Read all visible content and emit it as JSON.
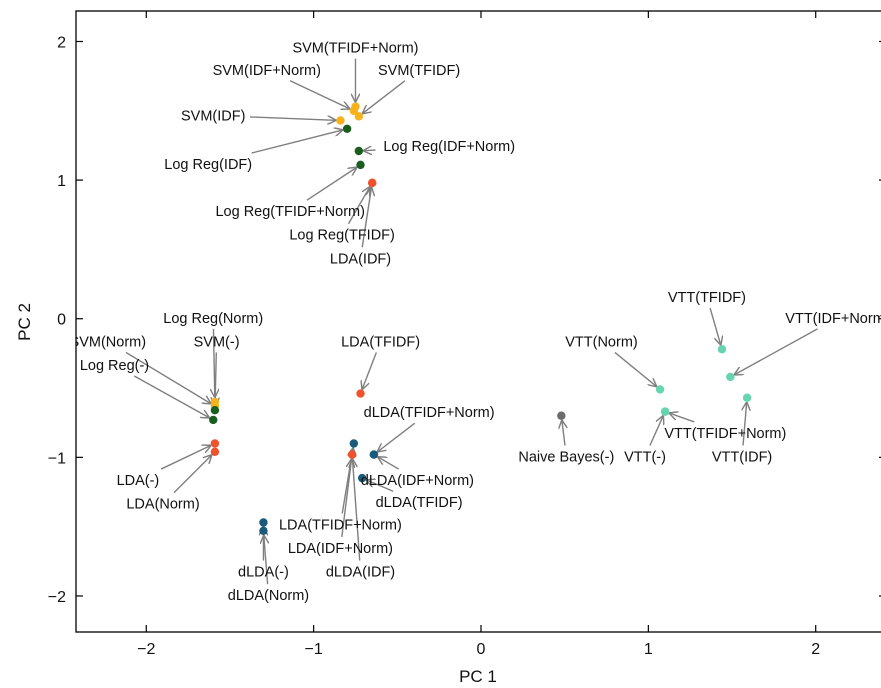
{
  "chart_data": {
    "type": "scatter",
    "title": "",
    "xlabel": "PC 1",
    "ylabel": "PC 2",
    "xlim": [
      -2.42,
      2.42
    ],
    "ylim": [
      -2.26,
      2.22
    ],
    "xticks": [
      -2,
      -1,
      0,
      1,
      2
    ],
    "yticks": [
      -2,
      -1,
      0,
      1,
      2
    ],
    "grid": false,
    "colors": {
      "svm": "#f5b21b",
      "logreg": "#1a5e1f",
      "lda": "#f0522c",
      "dlda": "#1a5a7a",
      "vtt": "#66d4ae",
      "naive_bayes": "#6b6b6b",
      "arrow": "#7f7f7f"
    },
    "points": [
      {
        "label": "SVM(TFIDF+Norm)",
        "x": -0.75,
        "y": 1.53,
        "group": "svm",
        "lx": -0.75,
        "ly": 1.92,
        "la": "middle"
      },
      {
        "label": "SVM(IDF+Norm)",
        "x": -0.76,
        "y": 1.5,
        "group": "svm",
        "lx": -1.28,
        "ly": 1.76,
        "la": "middle"
      },
      {
        "label": "SVM(TFIDF)",
        "x": -0.73,
        "y": 1.46,
        "group": "svm",
        "lx": -0.37,
        "ly": 1.76,
        "la": "middle"
      },
      {
        "label": "SVM(IDF)",
        "x": -0.84,
        "y": 1.43,
        "group": "svm",
        "lx": -1.6,
        "ly": 1.43,
        "la": "middle"
      },
      {
        "label": "Log Reg(IDF)",
        "x": -0.8,
        "y": 1.37,
        "group": "logreg",
        "lx": -1.63,
        "ly": 1.08,
        "la": "middle"
      },
      {
        "label": "Log Reg(IDF+Norm)",
        "x": -0.73,
        "y": 1.21,
        "group": "logreg",
        "lx": -0.19,
        "ly": 1.21,
        "la": "middle"
      },
      {
        "label": "Log Reg(TFIDF+Norm)",
        "x": -0.72,
        "y": 1.11,
        "group": "logreg",
        "lx": -1.14,
        "ly": 0.74,
        "la": "middle"
      },
      {
        "label": "Log Reg(TFIDF)",
        "x": -0.65,
        "y": 0.98,
        "group": "lda",
        "lx": -0.83,
        "ly": 0.57,
        "la": "middle"
      },
      {
        "label": "LDA(IDF)",
        "x": -0.65,
        "y": 0.98,
        "group": "lda",
        "lx": -0.72,
        "ly": 0.4,
        "la": "middle"
      },
      {
        "label": "Log Reg(Norm)",
        "x": -1.59,
        "y": -0.6,
        "group": "svm",
        "lx": -1.6,
        "ly": -0.03,
        "la": "middle"
      },
      {
        "label": "SVM(Norm)",
        "x": -1.59,
        "y": -0.63,
        "group": "svm",
        "lx": -2.23,
        "ly": -0.2,
        "la": "middle"
      },
      {
        "label": "SVM(-)",
        "x": -1.59,
        "y": -0.66,
        "group": "logreg",
        "lx": -1.58,
        "ly": -0.2,
        "la": "middle"
      },
      {
        "label": "Log Reg(-)",
        "x": -1.6,
        "y": -0.73,
        "group": "logreg",
        "lx": -2.19,
        "ly": -0.37,
        "la": "middle"
      },
      {
        "label": "LDA(-)",
        "x": -1.59,
        "y": -0.9,
        "group": "lda",
        "lx": -2.05,
        "ly": -1.2,
        "la": "middle"
      },
      {
        "label": "LDA(Norm)",
        "x": -1.59,
        "y": -0.96,
        "group": "lda",
        "lx": -1.9,
        "ly": -1.37,
        "la": "middle"
      },
      {
        "label": "LDA(TFIDF)",
        "x": -0.72,
        "y": -0.54,
        "group": "lda",
        "lx": -0.6,
        "ly": -0.2,
        "la": "middle"
      },
      {
        "label": "dLDA(TFIDF+Norm)",
        "x": -0.64,
        "y": -0.98,
        "group": "dlda",
        "lx": -0.31,
        "ly": -0.71,
        "la": "middle"
      },
      {
        "label": "dLDA(IDF+Norm)",
        "x": -0.64,
        "y": -0.98,
        "group": "dlda",
        "lx": -0.38,
        "ly": -1.2,
        "la": "middle"
      },
      {
        "label": "dLDA(TFIDF)",
        "x": -0.71,
        "y": -1.15,
        "group": "dlda",
        "lx": -0.37,
        "ly": -1.36,
        "la": "middle"
      },
      {
        "label": "LDA(TFIDF+Norm)",
        "x": -0.76,
        "y": -0.9,
        "group": "dlda",
        "lx": -0.84,
        "ly": -1.52,
        "la": "middle"
      },
      {
        "label": "LDA(IDF+Norm)",
        "x": -0.77,
        "y": -0.98,
        "group": "lda",
        "lx": -0.84,
        "ly": -1.69,
        "la": "middle"
      },
      {
        "label": "dLDA(IDF)",
        "x": -0.77,
        "y": -0.98,
        "group": "lda",
        "lx": -0.72,
        "ly": -1.86,
        "la": "middle"
      },
      {
        "label": "dLDA(-)",
        "x": -1.3,
        "y": -1.47,
        "group": "dlda",
        "lx": -1.3,
        "ly": -1.86,
        "la": "middle"
      },
      {
        "label": "dLDA(Norm)",
        "x": -1.3,
        "y": -1.53,
        "group": "dlda",
        "lx": -1.27,
        "ly": -2.03,
        "la": "middle"
      },
      {
        "label": "Naive Bayes(-)",
        "x": 0.48,
        "y": -0.7,
        "group": "naive_bayes",
        "lx": 0.51,
        "ly": -1.03,
        "la": "middle"
      },
      {
        "label": "VTT(TFIDF)",
        "x": 1.44,
        "y": -0.22,
        "group": "vtt",
        "lx": 1.35,
        "ly": 0.12,
        "la": "middle"
      },
      {
        "label": "VTT(IDF+Norm)",
        "x": 1.49,
        "y": -0.42,
        "group": "vtt",
        "lx": 2.13,
        "ly": -0.03,
        "la": "middle"
      },
      {
        "label": "VTT(Norm)",
        "x": 1.07,
        "y": -0.51,
        "group": "vtt",
        "lx": 0.72,
        "ly": -0.2,
        "la": "middle"
      },
      {
        "label": "VTT(IDF)",
        "x": 1.59,
        "y": -0.57,
        "group": "vtt",
        "lx": 1.56,
        "ly": -1.03,
        "la": "middle"
      },
      {
        "label": "VTT(TFIDF+Norm)",
        "x": 1.1,
        "y": -0.67,
        "group": "vtt",
        "lx": 1.46,
        "ly": -0.86,
        "la": "middle"
      },
      {
        "label": "VTT(-)",
        "x": 1.1,
        "y": -0.67,
        "group": "vtt",
        "lx": 0.98,
        "ly": -1.03,
        "la": "middle"
      }
    ]
  }
}
